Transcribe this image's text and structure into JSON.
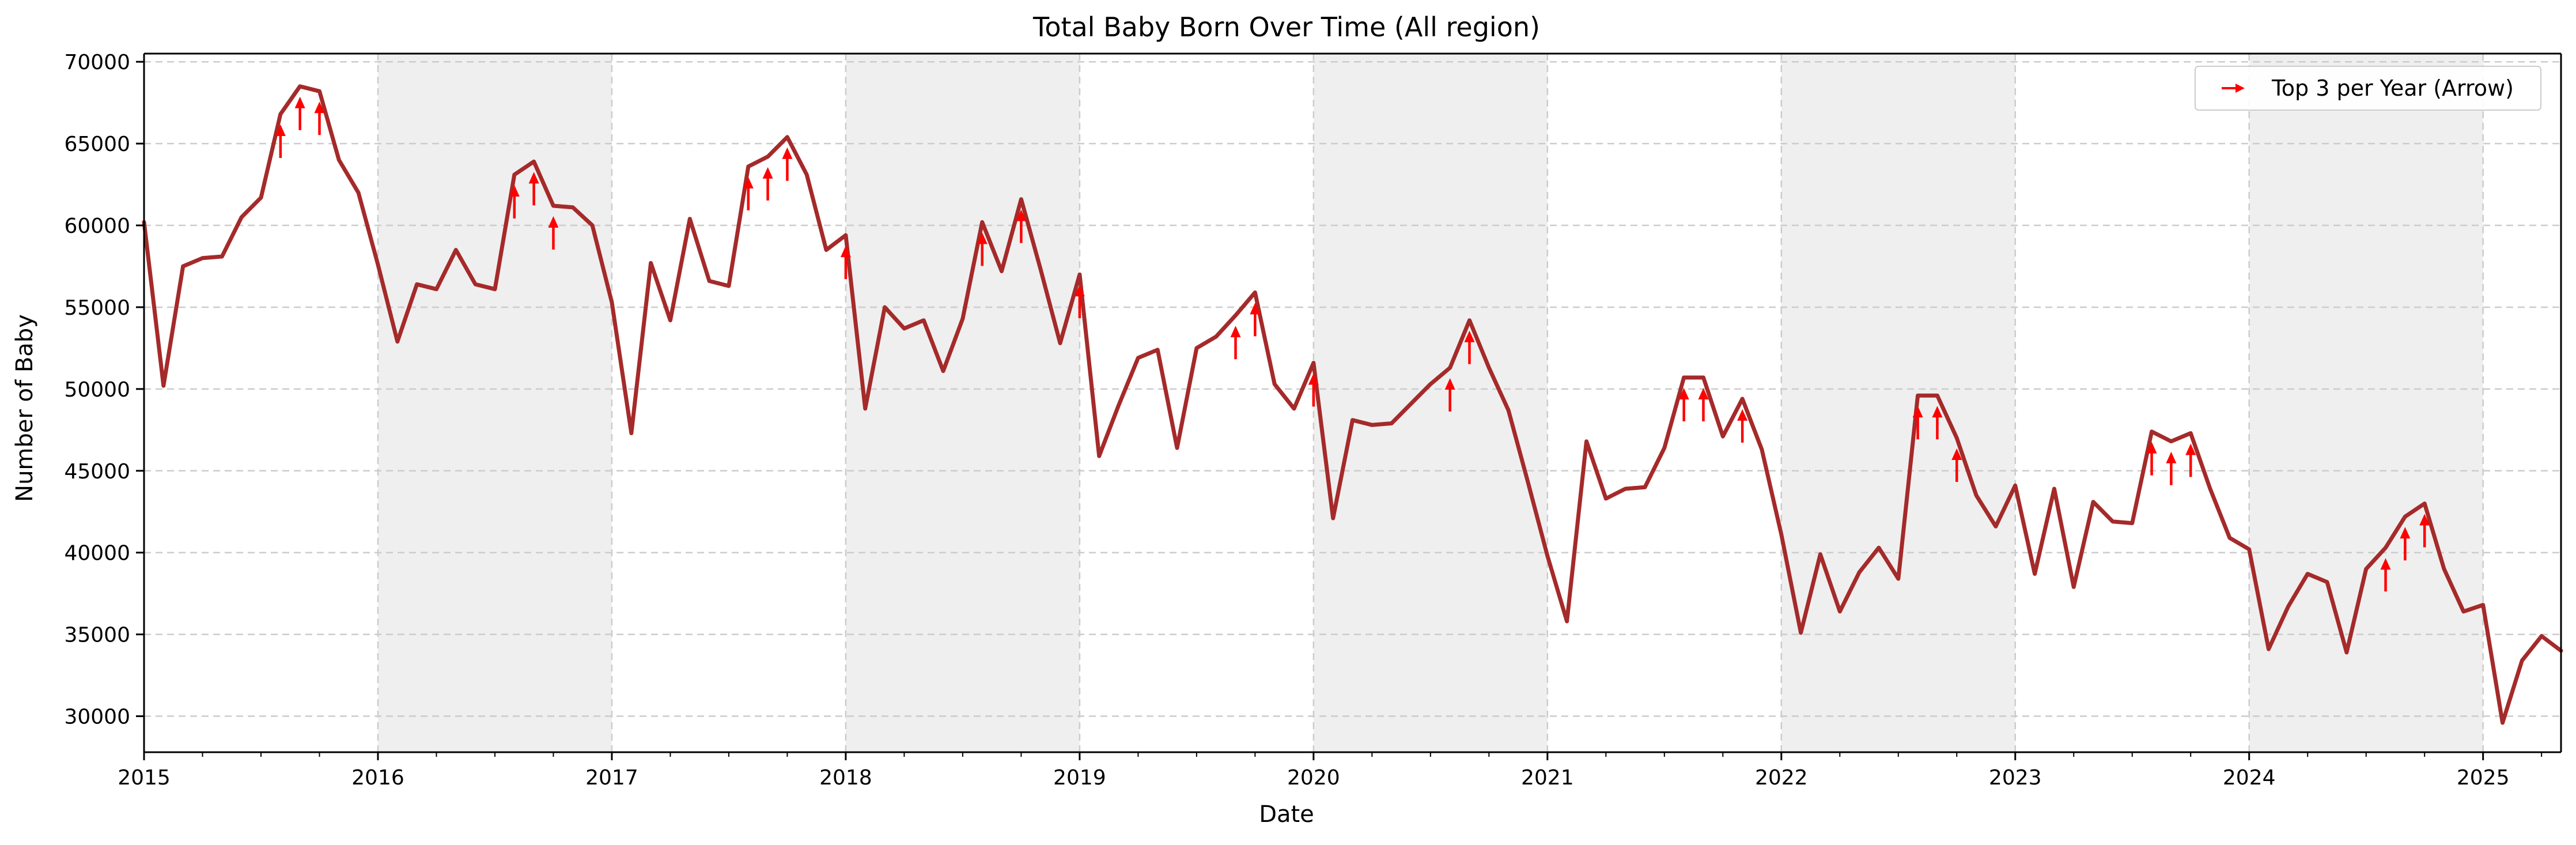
{
  "chart_data": {
    "type": "line",
    "title": "Total Baby Born Over Time (All region)",
    "xlabel": "Date",
    "ylabel": "Number of Baby",
    "xlim": [
      "2015-01",
      "2025-05"
    ],
    "ylim": [
      27800,
      70500
    ],
    "x_ticks": [
      "2015",
      "2016",
      "2017",
      "2018",
      "2019",
      "2020",
      "2021",
      "2022",
      "2023",
      "2024",
      "2025"
    ],
    "y_ticks": [
      30000,
      35000,
      40000,
      45000,
      50000,
      55000,
      60000,
      65000,
      70000
    ],
    "grid": true,
    "legend_position": "top-right",
    "shaded_years": [
      2016,
      2018,
      2020,
      2022,
      2024
    ],
    "colors": {
      "line": "#a52a2a",
      "arrow": "#ff0000",
      "shade": "#efefef",
      "grid": "#cccccc"
    },
    "series": [
      {
        "name": "",
        "x": [
          "2015-01",
          "2015-02",
          "2015-03",
          "2015-04",
          "2015-05",
          "2015-06",
          "2015-07",
          "2015-08",
          "2015-09",
          "2015-10",
          "2015-11",
          "2015-12",
          "2016-01",
          "2016-02",
          "2016-03",
          "2016-04",
          "2016-05",
          "2016-06",
          "2016-07",
          "2016-08",
          "2016-09",
          "2016-10",
          "2016-11",
          "2016-12",
          "2017-01",
          "2017-02",
          "2017-03",
          "2017-04",
          "2017-05",
          "2017-06",
          "2017-07",
          "2017-08",
          "2017-09",
          "2017-10",
          "2017-11",
          "2017-12",
          "2018-01",
          "2018-02",
          "2018-03",
          "2018-04",
          "2018-05",
          "2018-06",
          "2018-07",
          "2018-08",
          "2018-09",
          "2018-10",
          "2018-11",
          "2018-12",
          "2019-01",
          "2019-02",
          "2019-03",
          "2019-04",
          "2019-05",
          "2019-06",
          "2019-07",
          "2019-08",
          "2019-09",
          "2019-10",
          "2019-11",
          "2019-12",
          "2020-01",
          "2020-02",
          "2020-03",
          "2020-04",
          "2020-05",
          "2020-06",
          "2020-07",
          "2020-08",
          "2020-09",
          "2020-10",
          "2020-11",
          "2020-12",
          "2021-01",
          "2021-02",
          "2021-03",
          "2021-04",
          "2021-05",
          "2021-06",
          "2021-07",
          "2021-08",
          "2021-09",
          "2021-10",
          "2021-11",
          "2021-12",
          "2022-01",
          "2022-02",
          "2022-03",
          "2022-04",
          "2022-05",
          "2022-06",
          "2022-07",
          "2022-08",
          "2022-09",
          "2022-10",
          "2022-11",
          "2022-12",
          "2023-01",
          "2023-02",
          "2023-03",
          "2023-04",
          "2023-05",
          "2023-06",
          "2023-07",
          "2023-08",
          "2023-09",
          "2023-10",
          "2023-11",
          "2023-12",
          "2024-01",
          "2024-02",
          "2024-03",
          "2024-04",
          "2024-05",
          "2024-06",
          "2024-07",
          "2024-08",
          "2024-09",
          "2024-10",
          "2024-11",
          "2024-12",
          "2025-01",
          "2025-02",
          "2025-03",
          "2025-04",
          "2025-05"
        ],
        "values": [
          60200,
          50200,
          57500,
          58000,
          58100,
          60500,
          61700,
          66800,
          68500,
          68200,
          64000,
          62000,
          57600,
          52900,
          56400,
          56100,
          58500,
          56400,
          56100,
          63100,
          63900,
          61200,
          61100,
          60000,
          55300,
          47300,
          57700,
          54200,
          60400,
          56600,
          56300,
          63600,
          64200,
          65400,
          63100,
          58500,
          59400,
          48800,
          55000,
          53700,
          54200,
          51100,
          54300,
          60200,
          57200,
          61600,
          57300,
          52800,
          57000,
          45900,
          49000,
          51900,
          52400,
          46400,
          52500,
          53200,
          54500,
          55900,
          50300,
          48800,
          51600,
          42100,
          48100,
          47800,
          47900,
          49100,
          50300,
          51300,
          54200,
          51300,
          48700,
          44300,
          39800,
          35800,
          46800,
          43300,
          43900,
          44000,
          46400,
          50700,
          50700,
          47100,
          49400,
          46300,
          41100,
          35100,
          39900,
          36400,
          38800,
          40300,
          38400,
          49600,
          49600,
          47000,
          43500,
          41600,
          44100,
          38700,
          43900,
          37900,
          43100,
          41900,
          41800,
          47400,
          46800,
          47300,
          43900,
          40900,
          40200,
          34100,
          36700,
          38700,
          38200,
          33900,
          39000,
          40300,
          42200,
          43000,
          39000,
          36400,
          36800,
          29600,
          33400,
          34900,
          34000
        ]
      }
    ],
    "annotations": {
      "label": "Top 3 per Year (Arrow)",
      "points": [
        "2015-08",
        "2015-09",
        "2015-10",
        "2016-08",
        "2016-09",
        "2016-10",
        "2017-08",
        "2017-09",
        "2017-10",
        "2018-01",
        "2018-08",
        "2018-10",
        "2019-01",
        "2019-09",
        "2019-10",
        "2020-01",
        "2020-08",
        "2020-09",
        "2021-08",
        "2021-09",
        "2021-11",
        "2022-08",
        "2022-09",
        "2022-10",
        "2023-08",
        "2023-09",
        "2023-10",
        "2024-08",
        "2024-09",
        "2024-10"
      ]
    }
  }
}
